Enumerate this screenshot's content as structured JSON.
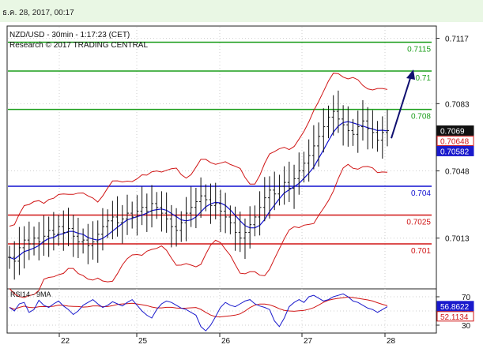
{
  "header": {
    "timestamp": "ธ.ค. 28, 2017, 00:17"
  },
  "chart_data": {
    "type": "candlestick",
    "title": "NZD/USD - 30min - 1:17:23 (CET)",
    "subtitle": "Research © 2017 TRADING CENTRAL",
    "x_labels": [
      "22",
      "25",
      "26",
      "27",
      "28"
    ],
    "y_ticks": [
      0.7117,
      0.7083,
      0.7048,
      0.7013
    ],
    "ylim": [
      0.6987,
      0.7123
    ],
    "levels": [
      {
        "label": "0.7115",
        "value": 0.7115,
        "color": "#1a9e1a"
      },
      {
        "label": "0.71",
        "value": 0.71,
        "color": "#1a9e1a"
      },
      {
        "label": "0.708",
        "value": 0.708,
        "color": "#1a9e1a"
      },
      {
        "label": "0.704",
        "value": 0.704,
        "color": "#1010d0"
      },
      {
        "label": "0.7025",
        "value": 0.7025,
        "color": "#d01515"
      },
      {
        "label": "0.701",
        "value": 0.701,
        "color": "#d01515"
      }
    ],
    "price_badges": [
      {
        "label": "0.7069",
        "value": 0.7069,
        "style": "black"
      },
      {
        "label": "0.70648",
        "value": 0.70648,
        "style": "red"
      },
      {
        "label": "0.70582",
        "value": 0.70582,
        "style": "blue"
      }
    ],
    "forecast_arrow": {
      "from": 0.7065,
      "to": 0.71,
      "color": "#101070"
    },
    "price_path": [
      0.7003,
      0.7001,
      0.7008,
      0.7012,
      0.701,
      0.7013,
      0.7011,
      0.7014,
      0.7017,
      0.7015,
      0.7019,
      0.7016,
      0.7018,
      0.7014,
      0.7011,
      0.7012,
      0.7009,
      0.7011,
      0.7015,
      0.7019,
      0.7022,
      0.7024,
      0.7021,
      0.7023,
      0.7026,
      0.7024,
      0.7027,
      0.7029,
      0.7027,
      0.7031,
      0.7029,
      0.7026,
      0.7023,
      0.7019,
      0.7017,
      0.7021,
      0.7026,
      0.7029,
      0.7032,
      0.7035,
      0.7033,
      0.703,
      0.7031,
      0.7027,
      0.7024,
      0.7021,
      0.7016,
      0.7013,
      0.7016,
      0.702,
      0.7024,
      0.7029,
      0.7034,
      0.7038,
      0.7036,
      0.704,
      0.7042,
      0.7039,
      0.7044,
      0.7048,
      0.7052,
      0.7056,
      0.7061,
      0.7066,
      0.7071,
      0.7076,
      0.7079,
      0.7075,
      0.7072,
      0.7069,
      0.7067,
      0.7071,
      0.7074,
      0.707,
      0.7068,
      0.7064,
      0.7068,
      0.7069
    ],
    "bands": {
      "ma_color": "#1010d0",
      "band_color": "#d01515"
    },
    "rsi": {
      "label": "RSI14 - 9MA",
      "levels": [
        70,
        50,
        30
      ],
      "values_badges": [
        {
          "label": "56.8622",
          "value": 56.8622,
          "style": "blue"
        },
        {
          "label": "52.1134",
          "value": 52.1134,
          "style": "red"
        }
      ],
      "series": [
        55,
        50,
        60,
        62,
        48,
        52,
        65,
        58,
        55,
        60,
        64,
        57,
        52,
        45,
        50,
        58,
        62,
        66,
        60,
        55,
        58,
        63,
        60,
        57,
        62,
        66,
        58,
        50,
        44,
        40,
        52,
        60,
        64,
        62,
        58,
        54,
        52,
        48,
        44,
        28,
        22,
        30,
        42,
        55,
        62,
        58,
        56,
        60,
        64,
        66,
        60,
        57,
        55,
        52,
        36,
        28,
        40,
        56,
        62,
        66,
        62,
        70,
        72,
        68,
        64,
        66,
        70,
        72,
        74,
        70,
        64,
        62,
        58,
        54,
        52,
        48,
        52,
        56
      ]
    }
  }
}
